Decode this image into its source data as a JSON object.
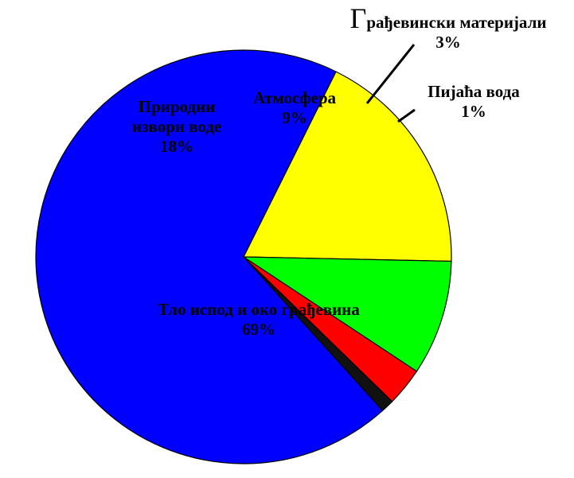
{
  "chart_data": {
    "type": "pie",
    "title": "",
    "slices": [
      {
        "name": "Тло испод и око грађевина",
        "value": 69,
        "label": "69%",
        "color": "#0000ff"
      },
      {
        "name": "Природни извори воде",
        "value": 18,
        "label": "18%",
        "color": "#ffff00"
      },
      {
        "name": "Атмосфера",
        "value": 9,
        "label": "9%",
        "color": "#00ff00"
      },
      {
        "name": "Грађевински материјали",
        "value": 3,
        "label": "3%",
        "color": "#ff0000"
      },
      {
        "name": "Пијаћа вода",
        "value": 1,
        "label": "1%",
        "color": "#111111"
      }
    ],
    "label_lines": {
      "name_lines": [
        [
          "Тло испод и око грађевина"
        ],
        [
          "Природни",
          "извори воде"
        ],
        [
          "Атмосфера"
        ],
        [
          "Грађевински материјали"
        ],
        [
          "Пијаћа вода"
        ]
      ]
    },
    "legend": false
  }
}
